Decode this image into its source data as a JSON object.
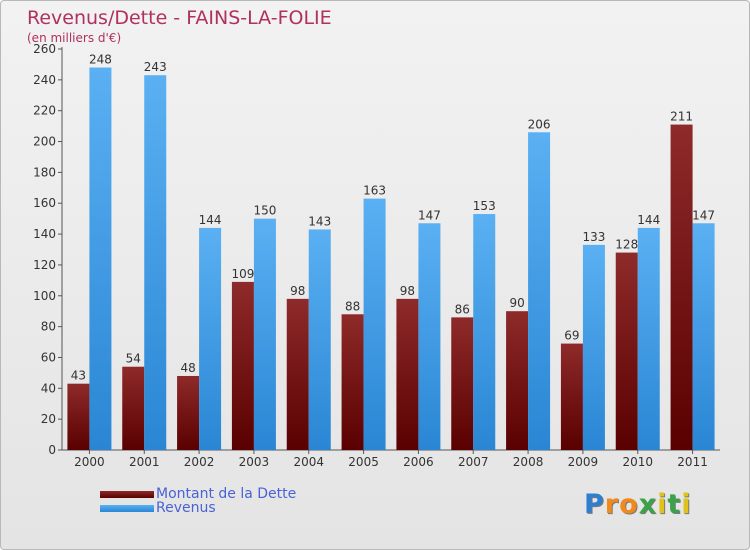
{
  "chart_data": {
    "type": "bar",
    "title": "Revenus/Dette - FAINS-LA-FOLIE",
    "subtitle": "(en milliers d'€)",
    "categories": [
      "2000",
      "2001",
      "2002",
      "2003",
      "2004",
      "2005",
      "2006",
      "2007",
      "2008",
      "2009",
      "2010",
      "2011"
    ],
    "series": [
      {
        "name": "Montant de la Dette",
        "color": "#7a1010",
        "values": [
          43,
          54,
          48,
          109,
          98,
          88,
          98,
          86,
          90,
          69,
          128,
          211
        ]
      },
      {
        "name": "Revenus",
        "color": "#3d9be9",
        "values": [
          248,
          243,
          144,
          150,
          143,
          163,
          147,
          153,
          206,
          133,
          144,
          147
        ]
      }
    ],
    "ylim": [
      0,
      260
    ],
    "yticks": [
      0,
      20,
      40,
      60,
      80,
      100,
      120,
      140,
      160,
      180,
      200,
      220,
      240,
      260
    ],
    "grid": false,
    "legend_position": "bottom-left"
  },
  "logo": {
    "letters": [
      {
        "ch": "P",
        "color": "#2f7fd0"
      },
      {
        "ch": "r",
        "color": "#f08a1c"
      },
      {
        "ch": "o",
        "color": "#f08a1c"
      },
      {
        "ch": "x",
        "color": "#3aa34a"
      },
      {
        "ch": "i",
        "color": "#e0c21a"
      },
      {
        "ch": "t",
        "color": "#3aa34a"
      },
      {
        "ch": "i",
        "color": "#e0c21a"
      }
    ]
  }
}
